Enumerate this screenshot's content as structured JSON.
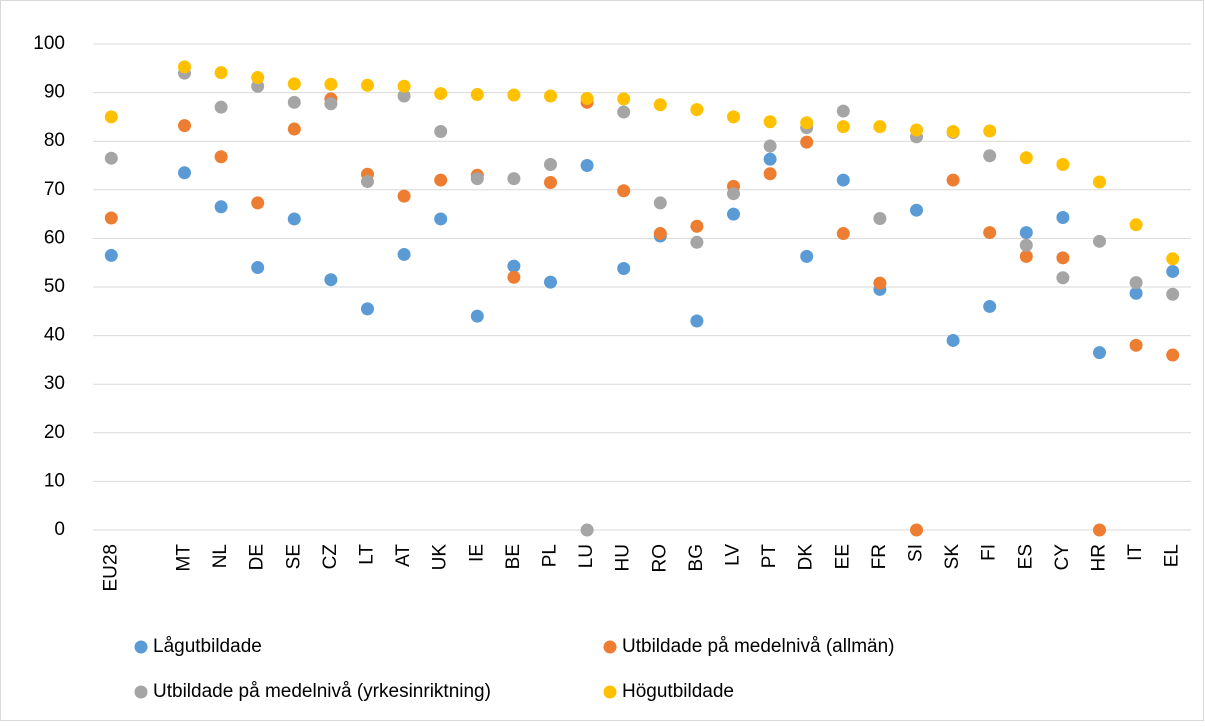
{
  "chart_data": {
    "type": "dot",
    "categories": [
      "EU28",
      null,
      "MT",
      "NL",
      "DE",
      "SE",
      "CZ",
      "LT",
      "AT",
      "UK",
      "IE",
      "BE",
      "PL",
      "LU",
      "HU",
      "RO",
      "BG",
      "LV",
      "PT",
      "DK",
      "EE",
      "FR",
      "SI",
      "SK",
      "FI",
      "ES",
      "CY",
      "HR",
      "IT",
      "EL"
    ],
    "series": [
      {
        "name": "Lågutbildade",
        "color": "#5b9bd5",
        "values": [
          56.5,
          null,
          73.5,
          66.5,
          54,
          64,
          51.5,
          45.5,
          56.7,
          64,
          44,
          54.3,
          51,
          75,
          53.8,
          60.5,
          43,
          65,
          76.3,
          56.3,
          72,
          49.5,
          65.8,
          39,
          46,
          61.2,
          64.3,
          36.5,
          48.7,
          53.2
        ]
      },
      {
        "name": "Utbildade på medelnivå (allmän)",
        "color": "#ed7d31",
        "values": [
          64.2,
          null,
          83.2,
          76.8,
          67.3,
          82.5,
          88.7,
          73.2,
          68.7,
          72,
          73,
          52,
          71.5,
          88,
          69.8,
          61,
          62.5,
          70.7,
          73.3,
          79.8,
          61,
          50.8,
          0,
          72,
          61.2,
          56.3,
          56,
          0,
          38,
          36
        ]
      },
      {
        "name": "Utbildade på medelnivå (yrkesinriktning)",
        "color": "#a5a5a5",
        "values": [
          76.5,
          null,
          94,
          87,
          91.3,
          88,
          87.7,
          71.7,
          89.3,
          82,
          72.3,
          72.3,
          75.2,
          0,
          86,
          67.3,
          59.2,
          69.2,
          79,
          82.8,
          86.2,
          64.1,
          80.9,
          81.8,
          77,
          58.6,
          51.9,
          59.4,
          50.9,
          48.5
        ]
      },
      {
        "name": "Högutbildade",
        "color": "#ffc000",
        "values": [
          85,
          null,
          95.3,
          94.1,
          93.1,
          91.8,
          91.7,
          91.5,
          91.3,
          89.8,
          89.6,
          89.5,
          89.3,
          88.8,
          88.7,
          87.5,
          86.5,
          85,
          84,
          83.8,
          83,
          83,
          82.3,
          82,
          82.1,
          76.6,
          75.2,
          71.6,
          62.8,
          55.8
        ]
      }
    ],
    "ylim": [
      0,
      100
    ],
    "yticks": [
      0,
      10,
      20,
      30,
      40,
      50,
      60,
      70,
      80,
      90,
      100
    ],
    "grid": true,
    "legend": "bottom"
  }
}
